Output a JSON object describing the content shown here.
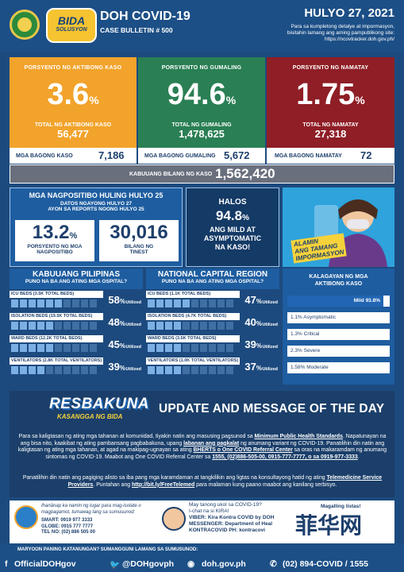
{
  "header": {
    "seal1_text": "DOH",
    "bida_top": "BIDA",
    "bida_bottom": "SOLUSYON",
    "title": "DOH COVID-19",
    "bulletin": "CASE BULLETIN # 500",
    "date": "HULYO 27, 2021",
    "note1": "Para sa kumpletong detalye at impormasyon,",
    "note2": "bisitahin lamang ang aming pampublikong site:",
    "note3": "https://ncovtracker.doh.gov.ph/"
  },
  "stats": {
    "active": {
      "label": "PORSYENTO NG AKTIBONG KASO",
      "value": "3.6",
      "unit": "%",
      "sub": "TOTAL NG AKTIBONG KASO",
      "total": "56,477",
      "color": "#f2a32b"
    },
    "recovered": {
      "label": "PORSYENTO NG GUMALING",
      "value": "94.6",
      "unit": "%",
      "sub": "TOTAL NG GUMALING",
      "total": "1,478,625",
      "color": "#2a7f54"
    },
    "died": {
      "label": "PORSYENTO NG NAMATAY",
      "value": "1.75",
      "unit": "%",
      "sub": "TOTAL NG NAMATAY",
      "total": "27,318",
      "color": "#8f1e26"
    }
  },
  "new_cases": {
    "cases_label": "MGA BAGONG KASO",
    "cases": "7,186",
    "recovered_label": "MGA BAGONG GUMALING",
    "recovered": "5,672",
    "died_label": "MGA BAGONG NAMATAY",
    "died": "72"
  },
  "total": {
    "label": "KABUUANG BILANG NG KASO",
    "value": "1,562,420"
  },
  "positivity": {
    "title": "MGA NAGPOSITIBO HULING HULYO 25",
    "sub1": "DATOS NGAYONG HULYO 27",
    "sub2": "AYON SA REPORTS NOONG HULYO 25",
    "rate": "13.2",
    "rate_unit": "%",
    "rate_label1": "PORSYENTO NG MGA",
    "rate_label2": "NAGPOSITIBO",
    "tested": "30,016",
    "tested_label1": "BILANG NG",
    "tested_label2": "TINEST"
  },
  "halos": {
    "top": "HALOS",
    "value": "94.8",
    "unit": "%",
    "line1": "ANG MILD AT",
    "line2": "ASYMPTOMATIC",
    "line3": "NA KASO!"
  },
  "promo": {
    "line1": "ALAMIN",
    "line2": "ANG TAMANG",
    "line3": "IMPORMASYON"
  },
  "hospital_ph": {
    "title": "KABUUANG PILIPINAS",
    "subtitle": "PUNO NA BA ANG ATING MGA OSPITAL?",
    "rows": [
      {
        "label": "ICU BEDS (3.5K TOTAL BEDS)",
        "pct": "58",
        "fill": 0.58
      },
      {
        "label": "ISOLATION BEDS (19.5K TOTAL BEDS)",
        "pct": "48",
        "fill": 0.48
      },
      {
        "label": "WARD BEDS (12.2K TOTAL BEDS)",
        "pct": "45",
        "fill": 0.45
      },
      {
        "label": "VENTILATORS (2.8K TOTAL VENTILATORS)",
        "pct": "39",
        "fill": 0.39
      }
    ]
  },
  "hospital_ncr": {
    "title": "NATIONAL CAPITAL REGION",
    "subtitle": "PUNO NA BA ANG ATING MGA OSPITAL?",
    "rows": [
      {
        "label": "ICU BEDS (1.1K TOTAL BEDS)",
        "pct": "47",
        "fill": 0.47
      },
      {
        "label": "ISOLATION BEDS (4.7K TOTAL BEDS)",
        "pct": "40",
        "fill": 0.4
      },
      {
        "label": "WARD BEDS (3.5K TOTAL BEDS)",
        "pct": "39",
        "fill": 0.39
      },
      {
        "label": "VENTILATORS (1.0K TOTAL VENTILATORS)",
        "pct": "37",
        "fill": 0.37
      }
    ]
  },
  "pct_sign": "%",
  "utilized": "Utilized",
  "severity": {
    "title1": "KALAGAYAN NG MGA",
    "title2": "AKTIBONG KASO",
    "rows": [
      {
        "label": "Mild 93.8%",
        "fill": 0.938
      },
      {
        "label": "1.1% Asymptomatic",
        "fill": 0.011
      },
      {
        "label": "1.3% Critical",
        "fill": 0.013
      },
      {
        "label": "2.3% Severe",
        "fill": 0.023
      },
      {
        "label": "1.58% Moderate",
        "fill": 0.0158
      }
    ]
  },
  "update": {
    "logo_top": "RESBAKUNA",
    "logo_bottom": "KASANGGA NG BIDA",
    "title": "UPDATE AND MESSAGE OF THE DAY",
    "p1a": "Para sa kaligtasan ng ating mga tahanan at komunidad, tiyakin natin ang masusing pagsunod sa ",
    "p1b": "Minimum Public Health Standards",
    "p1c": ". Napatunayan na ang bisa nito, kaakibat ng ating pambansang pagbabakuna, upang ",
    "p1d": "labanan ang pagkalat",
    "p1e": " ng anumang variant ng COVID-19. Panatilihin din natin ang kaligtasan ng ating mga tahanan, at agad na makipag-ugnayan sa ating ",
    "p1f": "BHERTS o One COVID Referral Center",
    "p1g": " sa oras na makaramdam ng anumang sintomas ng COVID-19. Maabot ang One COVID Referral Center sa ",
    "p1h": "1555, (02)886-505-00, 0915-777-7777, o sa 0919-977-3333",
    "p1i": ".",
    "p2a": "Panatilihin din natin ang pagiging alisto sa iba pang mga karamdaman at tangkilikin ang ligtas na konsultayong hatid ng ating ",
    "p2b": "Telemedicine Service Providers",
    "p2c": ". Puntahan ang ",
    "p2d": "http://bit.ly/FreeTelemed",
    "p2e": " para malaman kung paano maabot ang kanilang serbisyo."
  },
  "bottom": {
    "isolate1": "Ihanänap ka namin ng lugar para mag-isolate o",
    "isolate2": "magpagamot, tumawag lang sa sumusunod:",
    "smart": "SMART: 0919 977 3333",
    "globe": "GLOBE: 0915 777 7777",
    "telno": "TEL NO: (02) 886 505 00",
    "kira1": "May tanong ukol sa COVID-19?",
    "kira2": "I-chat na si KIRA!",
    "kira3": "VIBER: Kira Kontra COVID by DOH",
    "kira4": "MESSENGER: Department of Heal",
    "kira5": "KONTRACOVID PH: kontracovi",
    "mag": "Magalling listas!",
    "watermark": "菲华网"
  },
  "footer": {
    "note": "MARYOON PANING KATANUNGAN? SUMANGGUNI LAMANG SA SUMUSUNOD:",
    "fb": "OfficialDOHgov",
    "tw": "@DOHgovph",
    "web": "doh.gov.ph",
    "phone": "(02) 894-COVID / 1555"
  }
}
